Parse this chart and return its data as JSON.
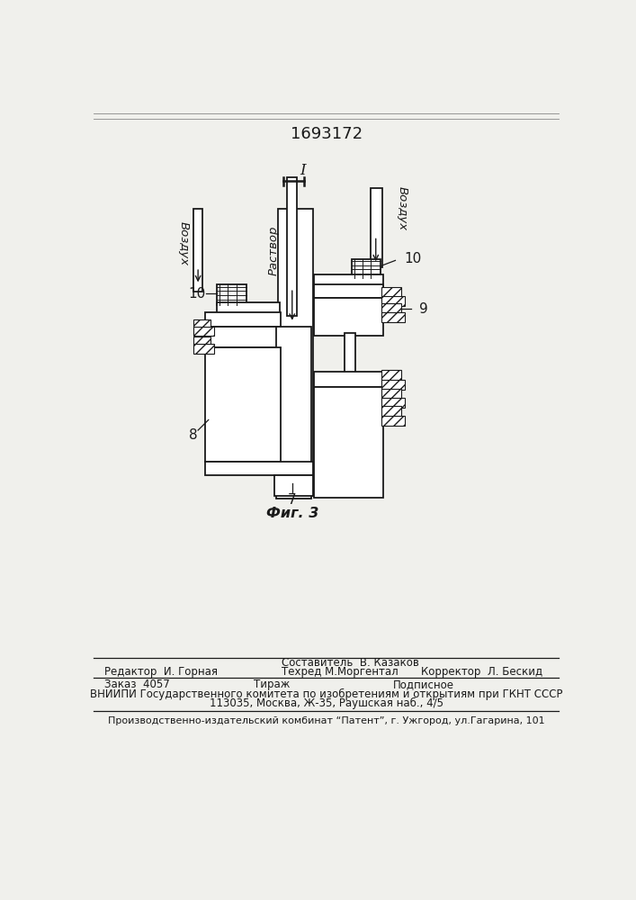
{
  "title": "1693172",
  "fig_label": "Фиг. 3",
  "label_I": "I",
  "label_7": "7",
  "label_8": "8",
  "label_9": "9",
  "label_10_left": "10",
  "label_10_right": "10",
  "label_rastvor": "Раствор",
  "label_vozduh_left": "Воздух",
  "label_vozduh_right": "Воздух",
  "footer_line1_left": "Редактор  И. Горная",
  "footer_line1_center": "Составитель  В. Казаков",
  "footer_line2_center": "Техред М.Моргентал",
  "footer_line2_right": "Корректор  Л. Бескид",
  "footer_zakaz": "Заказ  4057",
  "footer_tirazh": "Тираж",
  "footer_podpisnoe": "Подписное",
  "footer_vniipи": "ВНИИПИ Государственного комитета по изобретениям и открытиям при ГКНТ СССР",
  "footer_address": "113035, Москва, Ж-35, Раушская наб., 4/5",
  "footer_bottom": "Производственно-издательский комбинат “Патент”, г. Ужгород, ул.Гагарина, 101",
  "bg_color": "#f0f0ec",
  "line_color": "#1a1a1a"
}
